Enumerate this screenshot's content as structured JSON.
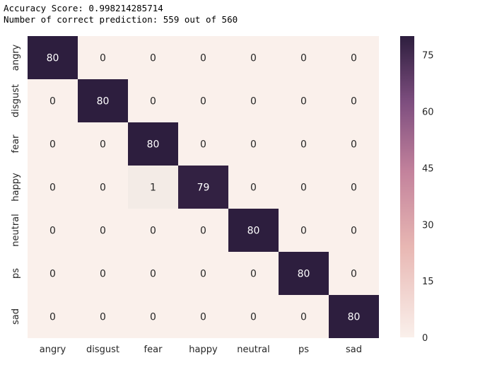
{
  "output": {
    "line1": "Accuracy Score: 0.998214285714",
    "line2": "Number of correct prediction: 559 out of 560"
  },
  "chart_data": {
    "type": "heatmap",
    "title": "",
    "xlabel": "",
    "ylabel": "",
    "x_categories": [
      "angry",
      "disgust",
      "fear",
      "happy",
      "neutral",
      "ps",
      "sad"
    ],
    "y_categories": [
      "angry",
      "disgust",
      "fear",
      "happy",
      "neutral",
      "ps",
      "sad"
    ],
    "values": [
      [
        80,
        0,
        0,
        0,
        0,
        0,
        0
      ],
      [
        0,
        80,
        0,
        0,
        0,
        0,
        0
      ],
      [
        0,
        0,
        80,
        0,
        0,
        0,
        0
      ],
      [
        0,
        0,
        1,
        79,
        0,
        0,
        0
      ],
      [
        0,
        0,
        0,
        0,
        80,
        0,
        0
      ],
      [
        0,
        0,
        0,
        0,
        0,
        80,
        0
      ],
      [
        0,
        0,
        0,
        0,
        0,
        0,
        80
      ]
    ],
    "annotated": true,
    "colorbar": {
      "range": [
        0,
        80
      ],
      "ticks": [
        0,
        15,
        30,
        45,
        60,
        75
      ]
    },
    "colors": {
      "low": "#faf0eb",
      "mid1": "#e8b7b3",
      "mid2": "#c3829c",
      "mid3": "#7e4e7f",
      "high": "#2d1e3e"
    }
  }
}
